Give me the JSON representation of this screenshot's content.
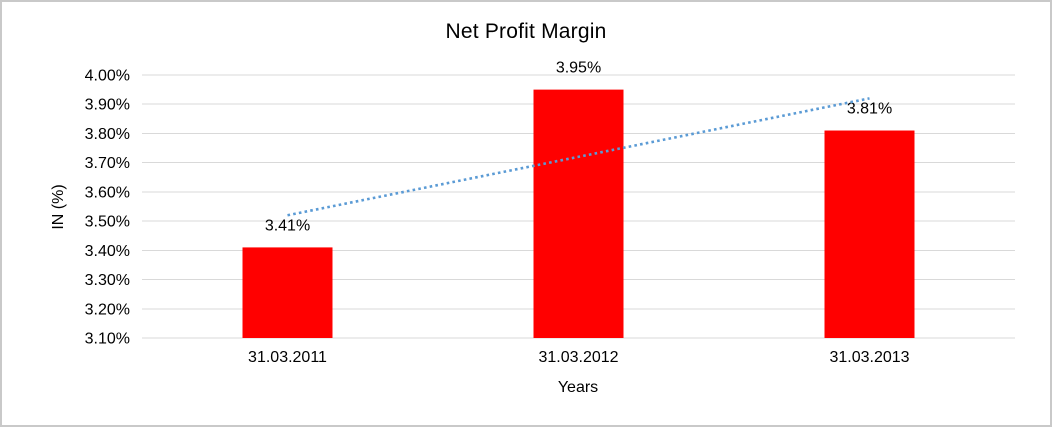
{
  "window": {
    "background": "#FFFFFF",
    "border_color": "#C9C9C9"
  },
  "chart_data": {
    "type": "bar",
    "title": "Net Profit Margin",
    "xlabel": "Years",
    "ylabel": "IN (%)",
    "categories": [
      "31.03.2011",
      "31.03.2012",
      "31.03.2013"
    ],
    "values": [
      3.41,
      3.95,
      3.81
    ],
    "data_labels": [
      "3.41%",
      "3.95%",
      "3.81%"
    ],
    "ylim": [
      3.1,
      4.0
    ],
    "y_tick_step": 0.1,
    "y_ticks": [
      "3.10%",
      "3.20%",
      "3.30%",
      "3.40%",
      "3.50%",
      "3.60%",
      "3.70%",
      "3.80%",
      "3.90%",
      "4.00%"
    ],
    "grid": true,
    "legend": "none",
    "bar_color": "#FF0000",
    "gridline_color": "#D9D9D9",
    "text_color": "#000000",
    "trendline": {
      "type": "linear",
      "style": "dotted",
      "color": "#5B9BD5",
      "y_start": 3.52,
      "y_end": 3.92
    }
  }
}
